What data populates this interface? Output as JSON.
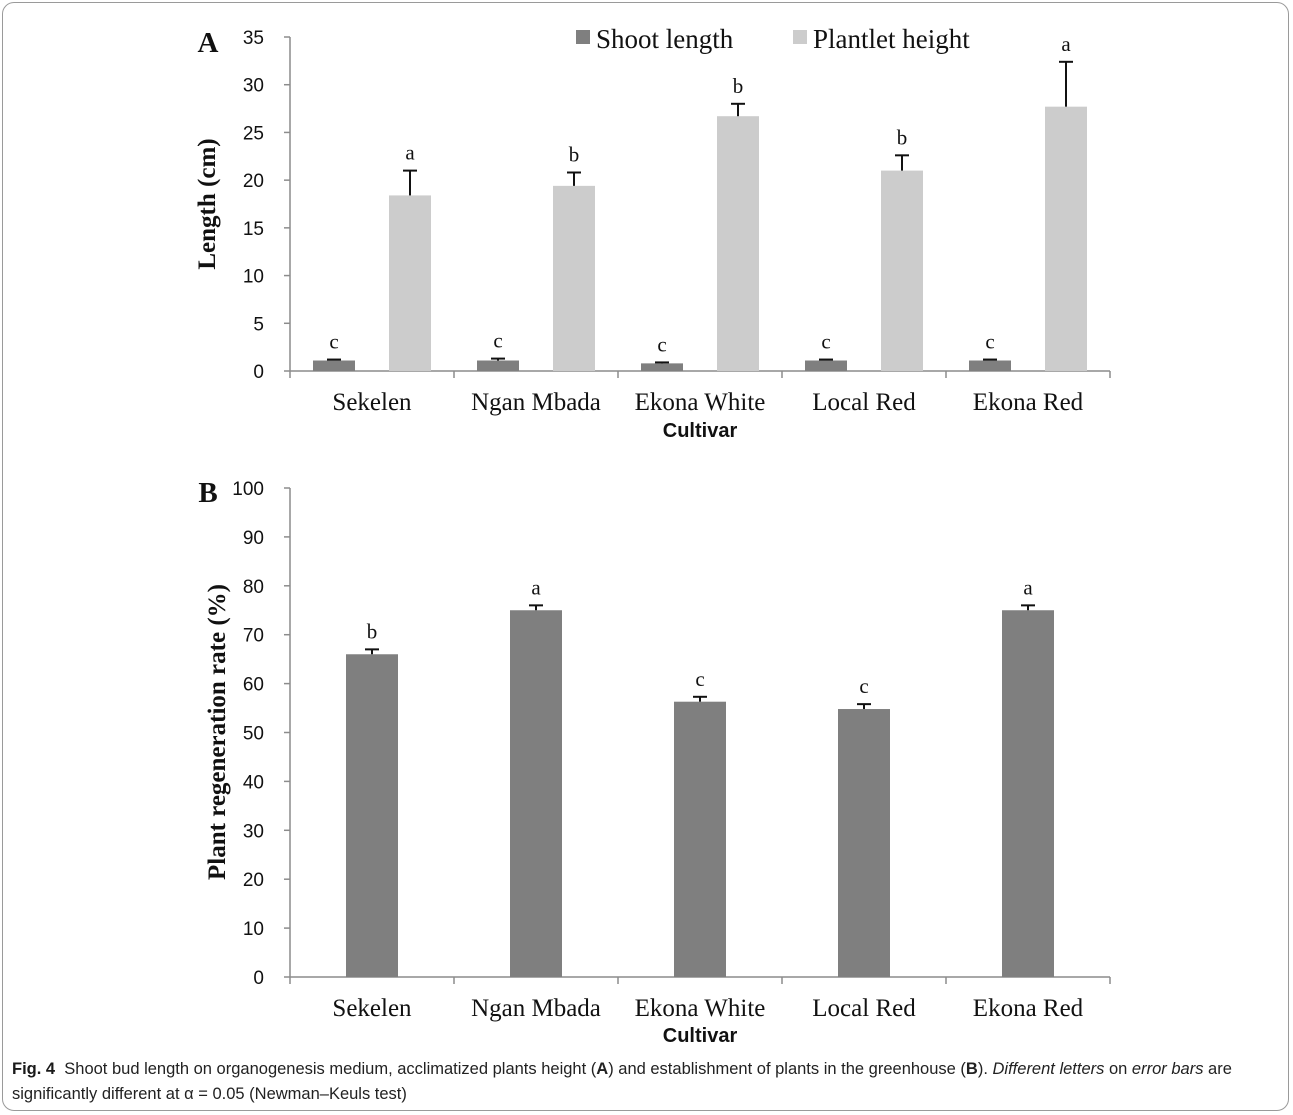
{
  "chart_data": [
    {
      "panel": "A",
      "type": "bar",
      "categories": [
        "Sekelen",
        "Ngan Mbada",
        "Ekona White",
        "Local Red",
        "Ekona Red"
      ],
      "xlabel": "Cultivar",
      "ylabel": "Length (cm)",
      "ylim": [
        0,
        35
      ],
      "yticks": [
        0,
        5,
        10,
        15,
        20,
        25,
        30,
        35
      ],
      "legend_position": "top",
      "series": [
        {
          "name": "Shoot length",
          "color": "#7f7f7f",
          "values": [
            1.1,
            1.1,
            0.8,
            1.1,
            1.1
          ],
          "errors": [
            0.1,
            0.2,
            0.1,
            0.1,
            0.1
          ],
          "letters": [
            "c",
            "c",
            "c",
            "c",
            "c"
          ]
        },
        {
          "name": "Plantlet height",
          "color": "#cccccc",
          "values": [
            18.4,
            19.4,
            26.7,
            21.0,
            27.7
          ],
          "errors": [
            2.6,
            1.4,
            1.3,
            1.6,
            4.7
          ],
          "letters": [
            "a",
            "b",
            "b",
            "b",
            "a"
          ]
        }
      ]
    },
    {
      "panel": "B",
      "type": "bar",
      "categories": [
        "Sekelen",
        "Ngan Mbada",
        "Ekona White",
        "Local Red",
        "Ekona Red"
      ],
      "xlabel": "Cultivar",
      "ylabel": "Plant regeneration rate (%)",
      "ylim": [
        0,
        100
      ],
      "yticks": [
        0,
        10,
        20,
        30,
        40,
        50,
        60,
        70,
        80,
        90,
        100
      ],
      "series": [
        {
          "color": "#7f7f7f",
          "values": [
            66,
            75,
            56.3,
            54.8,
            75
          ],
          "errors": [
            1,
            1,
            1,
            1,
            1
          ],
          "letters": [
            "b",
            "a",
            "c",
            "c",
            "a"
          ]
        }
      ]
    }
  ],
  "caption": {
    "label": "Fig. 4",
    "text_1": "Shoot bud length on organogenesis medium, acclimatized plants height (",
    "panel_a": "A",
    "text_2": ") and establishment of plants in the greenhouse (",
    "panel_b": "B",
    "text_3": "). ",
    "italic_1": "Different letters",
    "text_4": " on ",
    "italic_2": "error bars",
    "text_5": " are significantly different at α = 0.05 (Newman–Keuls test)"
  }
}
